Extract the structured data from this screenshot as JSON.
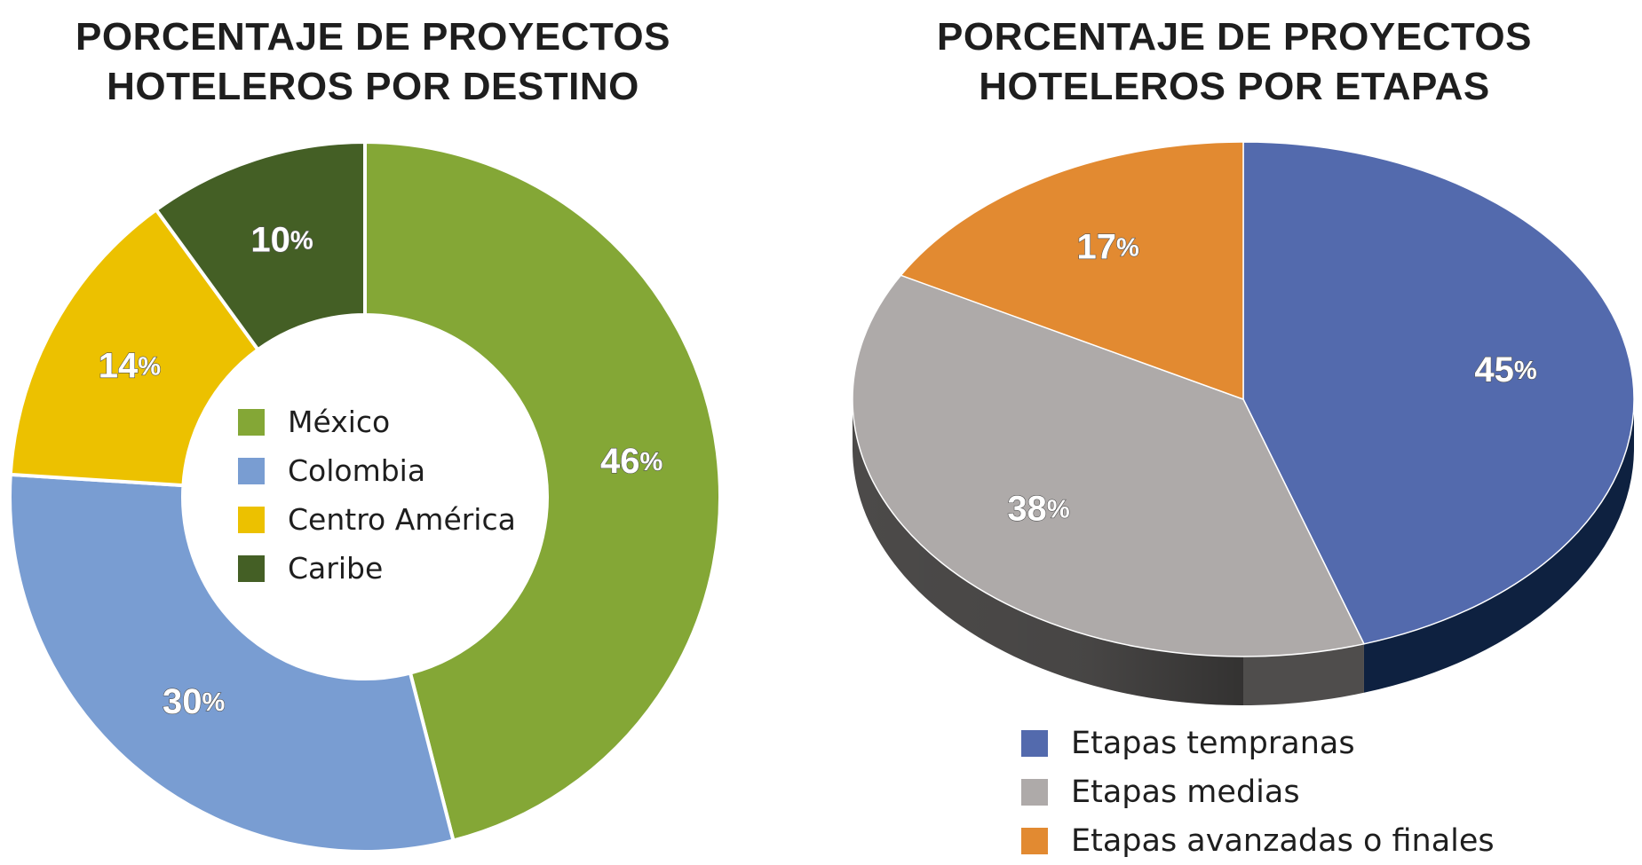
{
  "chart_data": [
    {
      "type": "pie",
      "variant": "donut",
      "title": [
        "PORCENTAJE DE PROYECTOS",
        "HOTELEROS POR DESTINO"
      ],
      "categories": [
        "México",
        "Colombia",
        "Centro América",
        "Caribe"
      ],
      "values": [
        46,
        30,
        14,
        10
      ],
      "labels": [
        "46",
        "30",
        "14",
        "10"
      ],
      "colors": [
        "#84a736",
        "#799dd2",
        "#ecc100",
        "#445f25"
      ],
      "unit": "%",
      "legend_position": "center"
    },
    {
      "type": "pie",
      "variant": "3d",
      "title": [
        "PORCENTAJE DE PROYECTOS",
        "HOTELEROS POR ETAPAS"
      ],
      "categories": [
        "Etapas tempranas",
        "Etapas medias",
        "Etapas avanzadas o finales"
      ],
      "values": [
        45,
        38,
        17
      ],
      "labels": [
        "45",
        "38",
        "17"
      ],
      "colors": [
        "#536aad",
        "#aeaaa9",
        "#e28a31"
      ],
      "side_colors": [
        "#0e2140",
        "#4f4d4c",
        "#9a5b1c"
      ],
      "unit": "%",
      "legend_position": "bottom-center"
    }
  ]
}
